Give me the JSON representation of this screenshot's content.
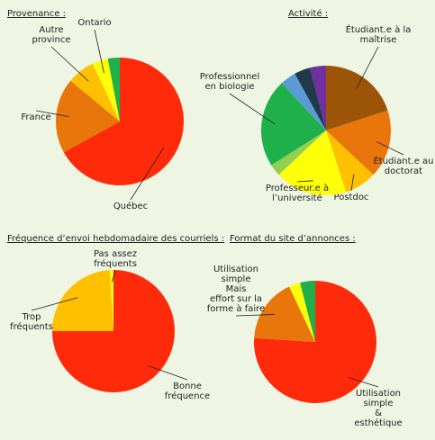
{
  "chart_data": [
    {
      "type": "pie",
      "title": "Provenance :",
      "categories": [
        [
          "Québec"
        ],
        [
          "France"
        ],
        [
          "Autre",
          "province"
        ],
        [
          "Ontario"
        ],
        null
      ],
      "values": [
        67,
        19,
        7,
        4,
        3
      ],
      "colors": [
        "#ff2a0a",
        "#e8760a",
        "#ffc000",
        "#ffff0a",
        "#1fb04a"
      ]
    },
    {
      "type": "pie",
      "title": "Activité :",
      "categories": [
        [
          "Étudiant.e à la",
          "maîtrise"
        ],
        [
          "Étudiant.e au",
          "doctorat"
        ],
        [
          "Postdoc"
        ],
        [
          "Professeur.e à",
          "l’université"
        ],
        null,
        [
          "Professionnel",
          "en biologie"
        ],
        null,
        null,
        null
      ],
      "values": [
        20,
        17,
        8,
        18,
        3,
        22,
        4,
        4,
        4
      ],
      "colors": [
        "#9c5508",
        "#e8760a",
        "#ffc000",
        "#ffff0a",
        "#92d050",
        "#1fb04a",
        "#5b9bd5",
        "#1f3a4a",
        "#7030a0"
      ]
    },
    {
      "type": "pie",
      "title": "Fréquence d’envoi hebdomadaire des courriels :",
      "categories": [
        [
          "Bonne",
          "fréquence"
        ],
        [
          "Trop",
          "fréquents"
        ],
        [
          "Pas assez",
          "fréquents"
        ]
      ],
      "values": [
        75,
        24,
        1
      ],
      "colors": [
        "#ff2a0a",
        "#ffc000",
        "#ffff0a"
      ]
    },
    {
      "type": "pie",
      "title": "Format du site d’annonces :",
      "categories": [
        [
          "Utilisation",
          "simple",
          "&",
          "esthétique"
        ],
        [
          "Utilisation",
          "simple",
          "Mais",
          "effort sur la",
          "forme à faire"
        ],
        null,
        null
      ],
      "values": [
        76,
        17,
        3,
        4
      ],
      "colors": [
        "#ff2a0a",
        "#e8760a",
        "#ffff0a",
        "#1fb04a"
      ]
    }
  ]
}
